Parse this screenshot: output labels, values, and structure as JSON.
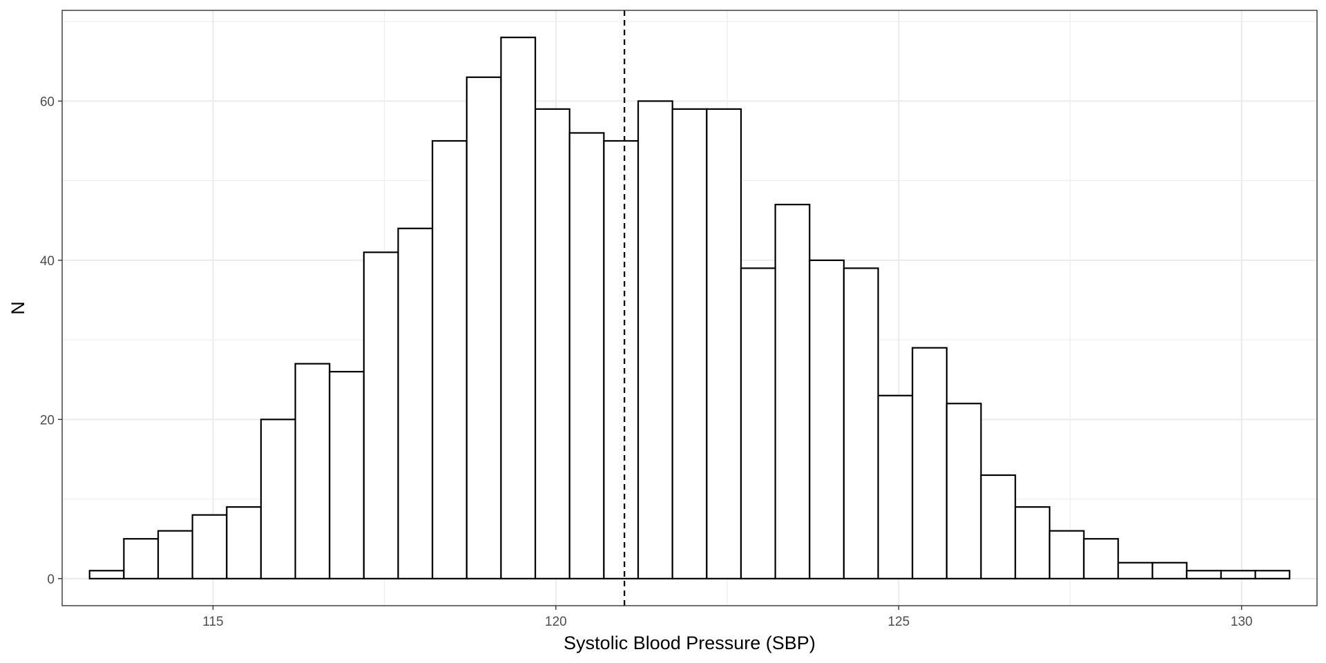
{
  "chart_data": {
    "type": "bar",
    "subtype": "histogram",
    "xlabel": "Systolic Blood Pressure (SBP)",
    "ylabel": "N",
    "xlim": [
      112.8,
      131.1
    ],
    "ylim": [
      -3.4,
      71.4
    ],
    "xticks": [
      115,
      120,
      125,
      130
    ],
    "yticks": [
      0,
      20,
      40,
      60
    ],
    "grid": true,
    "legend": "none",
    "bin_width": 0.5,
    "bins": [
      {
        "x0": 113.2,
        "x1": 113.7,
        "count": 1
      },
      {
        "x0": 113.7,
        "x1": 114.2,
        "count": 5
      },
      {
        "x0": 114.2,
        "x1": 114.7,
        "count": 6
      },
      {
        "x0": 114.7,
        "x1": 115.2,
        "count": 8
      },
      {
        "x0": 115.2,
        "x1": 115.7,
        "count": 9
      },
      {
        "x0": 115.7,
        "x1": 116.2,
        "count": 20
      },
      {
        "x0": 116.2,
        "x1": 116.7,
        "count": 27
      },
      {
        "x0": 116.7,
        "x1": 117.2,
        "count": 26
      },
      {
        "x0": 117.2,
        "x1": 117.7,
        "count": 41
      },
      {
        "x0": 117.7,
        "x1": 118.2,
        "count": 44
      },
      {
        "x0": 118.2,
        "x1": 118.7,
        "count": 55
      },
      {
        "x0": 118.7,
        "x1": 119.2,
        "count": 63
      },
      {
        "x0": 119.2,
        "x1": 119.7,
        "count": 68
      },
      {
        "x0": 119.7,
        "x1": 120.2,
        "count": 59
      },
      {
        "x0": 120.2,
        "x1": 120.7,
        "count": 56
      },
      {
        "x0": 120.7,
        "x1": 121.2,
        "count": 55
      },
      {
        "x0": 121.2,
        "x1": 121.7,
        "count": 60
      },
      {
        "x0": 121.7,
        "x1": 122.2,
        "count": 59
      },
      {
        "x0": 122.2,
        "x1": 122.7,
        "count": 59
      },
      {
        "x0": 122.7,
        "x1": 123.2,
        "count": 39
      },
      {
        "x0": 123.2,
        "x1": 123.7,
        "count": 47
      },
      {
        "x0": 123.7,
        "x1": 124.2,
        "count": 40
      },
      {
        "x0": 124.2,
        "x1": 124.7,
        "count": 39
      },
      {
        "x0": 124.7,
        "x1": 125.2,
        "count": 23
      },
      {
        "x0": 125.2,
        "x1": 125.7,
        "count": 29
      },
      {
        "x0": 125.7,
        "x1": 126.2,
        "count": 22
      },
      {
        "x0": 126.2,
        "x1": 126.7,
        "count": 13
      },
      {
        "x0": 126.7,
        "x1": 127.2,
        "count": 9
      },
      {
        "x0": 127.2,
        "x1": 127.7,
        "count": 6
      },
      {
        "x0": 127.7,
        "x1": 128.2,
        "count": 5
      },
      {
        "x0": 128.2,
        "x1": 128.7,
        "count": 2
      },
      {
        "x0": 128.7,
        "x1": 129.2,
        "count": 2
      },
      {
        "x0": 129.2,
        "x1": 129.7,
        "count": 1
      },
      {
        "x0": 129.7,
        "x1": 130.2,
        "count": 1
      },
      {
        "x0": 130.2,
        "x1": 130.7,
        "count": 1
      }
    ],
    "reference_line": {
      "x": 121.0,
      "style": "dashed"
    },
    "colors": {
      "bar_fill": "#ffffff",
      "bar_stroke": "#000000",
      "grid": "#ebebeb",
      "panel_border": "#333333",
      "tick_text": "#4d4d4d"
    }
  }
}
